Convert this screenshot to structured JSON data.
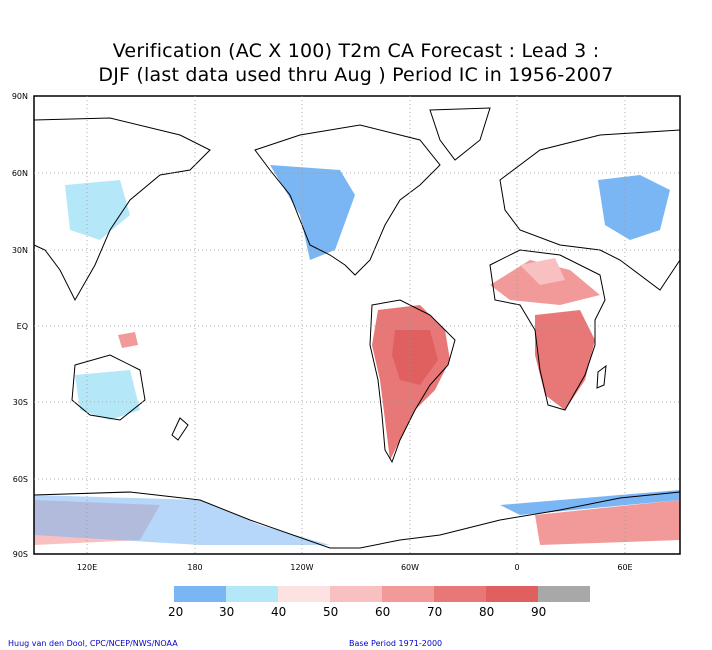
{
  "title_line1": "Verification (AC X 100) T2m CA Forecast : Lead 3 :",
  "title_line2": "DJF (last data used thru Aug ) Period IC in 1956-2007",
  "lat_labels": [
    "90N",
    "60N",
    "30N",
    "EQ",
    "30S",
    "60S",
    "90S"
  ],
  "lon_labels": [
    "120E",
    "180",
    "120W",
    "60W",
    "0",
    "60E"
  ],
  "colorbar": {
    "labels": [
      "20",
      "30",
      "40",
      "50",
      "60",
      "70",
      "80",
      "90"
    ],
    "colors": [
      "#7ab6f4",
      "#b4e8f8",
      "#fde2e2",
      "#f8c0c0",
      "#f29a9a",
      "#e87878",
      "#e06060",
      "#a8a8a8"
    ]
  },
  "footer_left": "Huug van den Dool, CPC/NCEP/NWS/NOAA",
  "footer_right": "Base Period 1971-2000"
}
